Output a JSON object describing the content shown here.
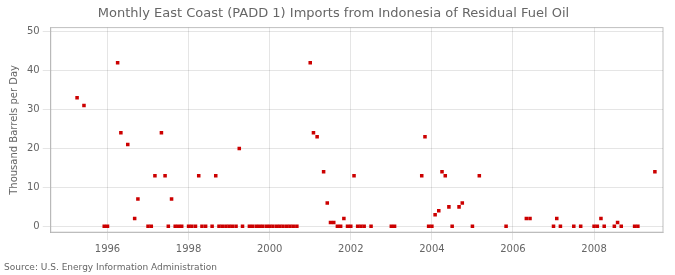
{
  "chart_data": {
    "type": "scatter",
    "title": "Monthly East Coast (PADD 1) Imports from Indonesia of Residual Fuel Oil",
    "ylabel": "Thousand Barrels per Day",
    "annotations": [
      "Source: U.S. Energy Information Administration"
    ],
    "color": "#cc0000",
    "marker": "square",
    "grid": true,
    "xlim": [
      1994.6,
      2009.7
    ],
    "ylim": [
      -1.5,
      51
    ],
    "xticks": [
      1996,
      1998,
      2000,
      2002,
      2004,
      2006,
      2008
    ],
    "yticks": [
      0,
      10,
      20,
      30,
      40,
      50
    ],
    "x": [
      1995.25,
      1995.42,
      1995.92,
      1996.0,
      1996.25,
      1996.33,
      1996.5,
      1996.67,
      1996.75,
      1997.0,
      1997.08,
      1997.17,
      1997.33,
      1997.42,
      1997.5,
      1997.58,
      1997.67,
      1997.75,
      1997.83,
      1998.0,
      1998.08,
      1998.17,
      1998.25,
      1998.33,
      1998.42,
      1998.58,
      1998.67,
      1998.75,
      1998.83,
      1998.92,
      1999.0,
      1999.08,
      1999.17,
      1999.25,
      1999.33,
      1999.5,
      1999.58,
      1999.67,
      1999.75,
      1999.83,
      1999.92,
      2000.0,
      2000.08,
      2000.17,
      2000.25,
      2000.33,
      2000.42,
      2000.5,
      2000.58,
      2000.67,
      2001.0,
      2001.08,
      2001.17,
      2001.33,
      2001.42,
      2001.5,
      2001.58,
      2001.67,
      2001.75,
      2001.83,
      2001.92,
      2002.0,
      2002.08,
      2002.17,
      2002.25,
      2002.33,
      2002.5,
      2003.0,
      2003.08,
      2003.75,
      2003.83,
      2003.92,
      2004.0,
      2004.08,
      2004.17,
      2004.25,
      2004.33,
      2004.42,
      2004.5,
      2004.67,
      2004.75,
      2005.0,
      2005.17,
      2005.83,
      2006.33,
      2006.42,
      2007.0,
      2007.08,
      2007.17,
      2007.5,
      2007.67,
      2008.0,
      2008.08,
      2008.17,
      2008.25,
      2008.5,
      2008.58,
      2008.67,
      2009.0,
      2009.08,
      2009.5
    ],
    "values": [
      33,
      31,
      0,
      0,
      42,
      24,
      21,
      2,
      7,
      0,
      0,
      13,
      24,
      13,
      0,
      7,
      0,
      0,
      0,
      0,
      0,
      0,
      13,
      0,
      0,
      0,
      13,
      0,
      0,
      0,
      0,
      0,
      0,
      20,
      0,
      0,
      0,
      0,
      0,
      0,
      0,
      0,
      0,
      0,
      0,
      0,
      0,
      0,
      0,
      0,
      42,
      24,
      23,
      14,
      6,
      1,
      1,
      0,
      0,
      2,
      0,
      0,
      13,
      0,
      0,
      0,
      0,
      0,
      0,
      13,
      23,
      0,
      0,
      3,
      4,
      14,
      13,
      5,
      0,
      5,
      6,
      0,
      13,
      0,
      2,
      2,
      0,
      2,
      0,
      0,
      0,
      0,
      0,
      2,
      0,
      0,
      1,
      0,
      0,
      0,
      14
    ]
  }
}
